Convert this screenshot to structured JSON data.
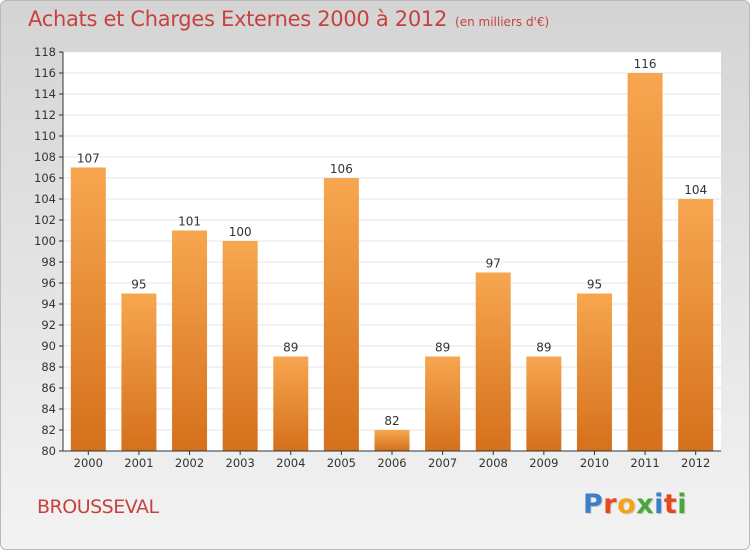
{
  "chart_data": {
    "type": "bar",
    "title": "Achats et Charges Externes 2000 à 2012",
    "subtitle": "(en milliers d'€)",
    "categories": [
      "2000",
      "2001",
      "2002",
      "2003",
      "2004",
      "2005",
      "2006",
      "2007",
      "2008",
      "2009",
      "2010",
      "2011",
      "2012"
    ],
    "values": [
      107,
      95,
      101,
      100,
      89,
      106,
      82,
      89,
      97,
      89,
      95,
      116,
      104
    ],
    "ylim": [
      80,
      118
    ],
    "yticks": [
      80,
      82,
      84,
      86,
      88,
      90,
      92,
      94,
      96,
      98,
      100,
      102,
      104,
      106,
      108,
      110,
      112,
      114,
      116,
      118
    ],
    "grid": true,
    "legend": "none",
    "bar_color": "#f0923a",
    "title_color": "#c7423f"
  },
  "footer": {
    "place": "BROUSSEVAL",
    "logo": "Proxiti"
  },
  "logo_colors": [
    "#3a7fc8",
    "#e6471e",
    "#f5a31a",
    "#4aa63a",
    "#3a7fc8",
    "#e6471e",
    "#4aa63a"
  ]
}
